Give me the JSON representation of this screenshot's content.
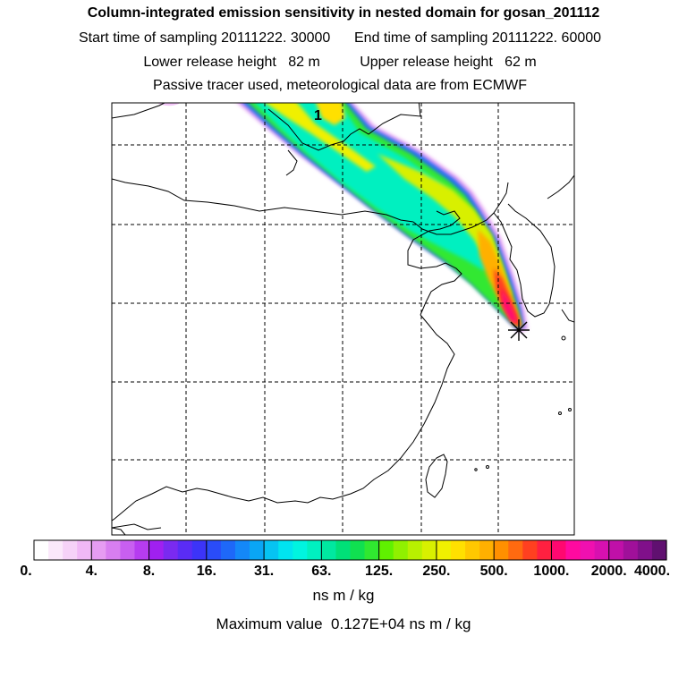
{
  "titles": {
    "line1": "Column-integrated emission sensitivity in nested domain for gosan_201112",
    "line2": "Start time of sampling 20111222. 30000      End time of sampling 20111222. 60000",
    "line3": "Lower release height   82 m          Upper release height   62 m",
    "line4": "Passive tracer used, meteorological data are from ECMWF"
  },
  "map": {
    "plume_label": "1",
    "colors": {
      "coast": "#000000",
      "grid": "#000000",
      "receptor": "#000000"
    }
  },
  "colorbar": {
    "labels": [
      "0.",
      "4.",
      "8.",
      "16.",
      "31.",
      "63.",
      "125.",
      "250.",
      "500.",
      "1000.",
      "2000.",
      "4000."
    ],
    "colors": [
      "#ffffff",
      "#fbe8fb",
      "#f6d2f8",
      "#f0b8f6",
      "#e69cf2",
      "#d87ef0",
      "#c85ff0",
      "#b63cf0",
      "#a020f0",
      "#7a2af0",
      "#5a2cf5",
      "#3c34f8",
      "#2a4cf8",
      "#1e68f8",
      "#1488f8",
      "#0aa6f5",
      "#06c4f2",
      "#00e4f0",
      "#00f4e0",
      "#00f0c0",
      "#00e8a0",
      "#00e078",
      "#10e050",
      "#30e830",
      "#60f000",
      "#90f000",
      "#b8f000",
      "#d8f000",
      "#f0f000",
      "#ffe000",
      "#ffc800",
      "#ffb000",
      "#ff9000",
      "#ff6a10",
      "#ff4020",
      "#ff2040",
      "#ff0870",
      "#ff0aa0",
      "#f010b0",
      "#d810b0",
      "#c010a8",
      "#a0109a",
      "#80108a",
      "#601070"
    ]
  },
  "units": "ns m / kg",
  "max_value": "Maximum value  0.127E+04 ns m / kg"
}
